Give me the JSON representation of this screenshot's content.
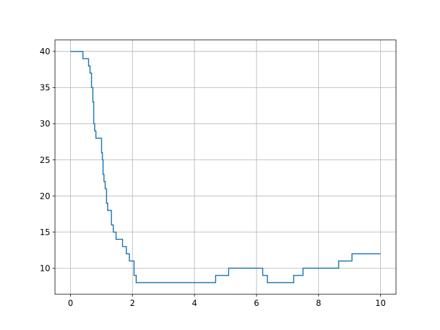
{
  "chart_data": {
    "type": "line",
    "drawstyle": "steps-post",
    "title": "",
    "xlabel": "",
    "ylabel": "",
    "xlim": [
      -0.5,
      10.5
    ],
    "ylim": [
      6.4,
      41.6
    ],
    "xticks": [
      0,
      2,
      4,
      6,
      8,
      10
    ],
    "yticks": [
      10,
      15,
      20,
      25,
      30,
      35,
      40
    ],
    "grid": true,
    "legend": "none",
    "series": [
      {
        "color": "#1f77b4",
        "x": [
          0,
          0.4,
          0.58,
          0.63,
          0.68,
          0.72,
          0.75,
          0.78,
          0.82,
          1.0,
          1.03,
          1.05,
          1.08,
          1.12,
          1.16,
          1.2,
          1.32,
          1.38,
          1.47,
          1.68,
          1.8,
          1.9,
          2.05,
          2.12,
          4.68,
          5.1,
          6.2,
          6.35,
          7.2,
          7.5,
          8.65,
          9.08,
          10.0
        ],
        "y": [
          40,
          39,
          38,
          37,
          35,
          33,
          30,
          29,
          28,
          26,
          25,
          23,
          22,
          21,
          19,
          18,
          16,
          15,
          14,
          13,
          12,
          11,
          9,
          8,
          9,
          10,
          9,
          8,
          9,
          10,
          11,
          12,
          12
        ]
      }
    ]
  }
}
